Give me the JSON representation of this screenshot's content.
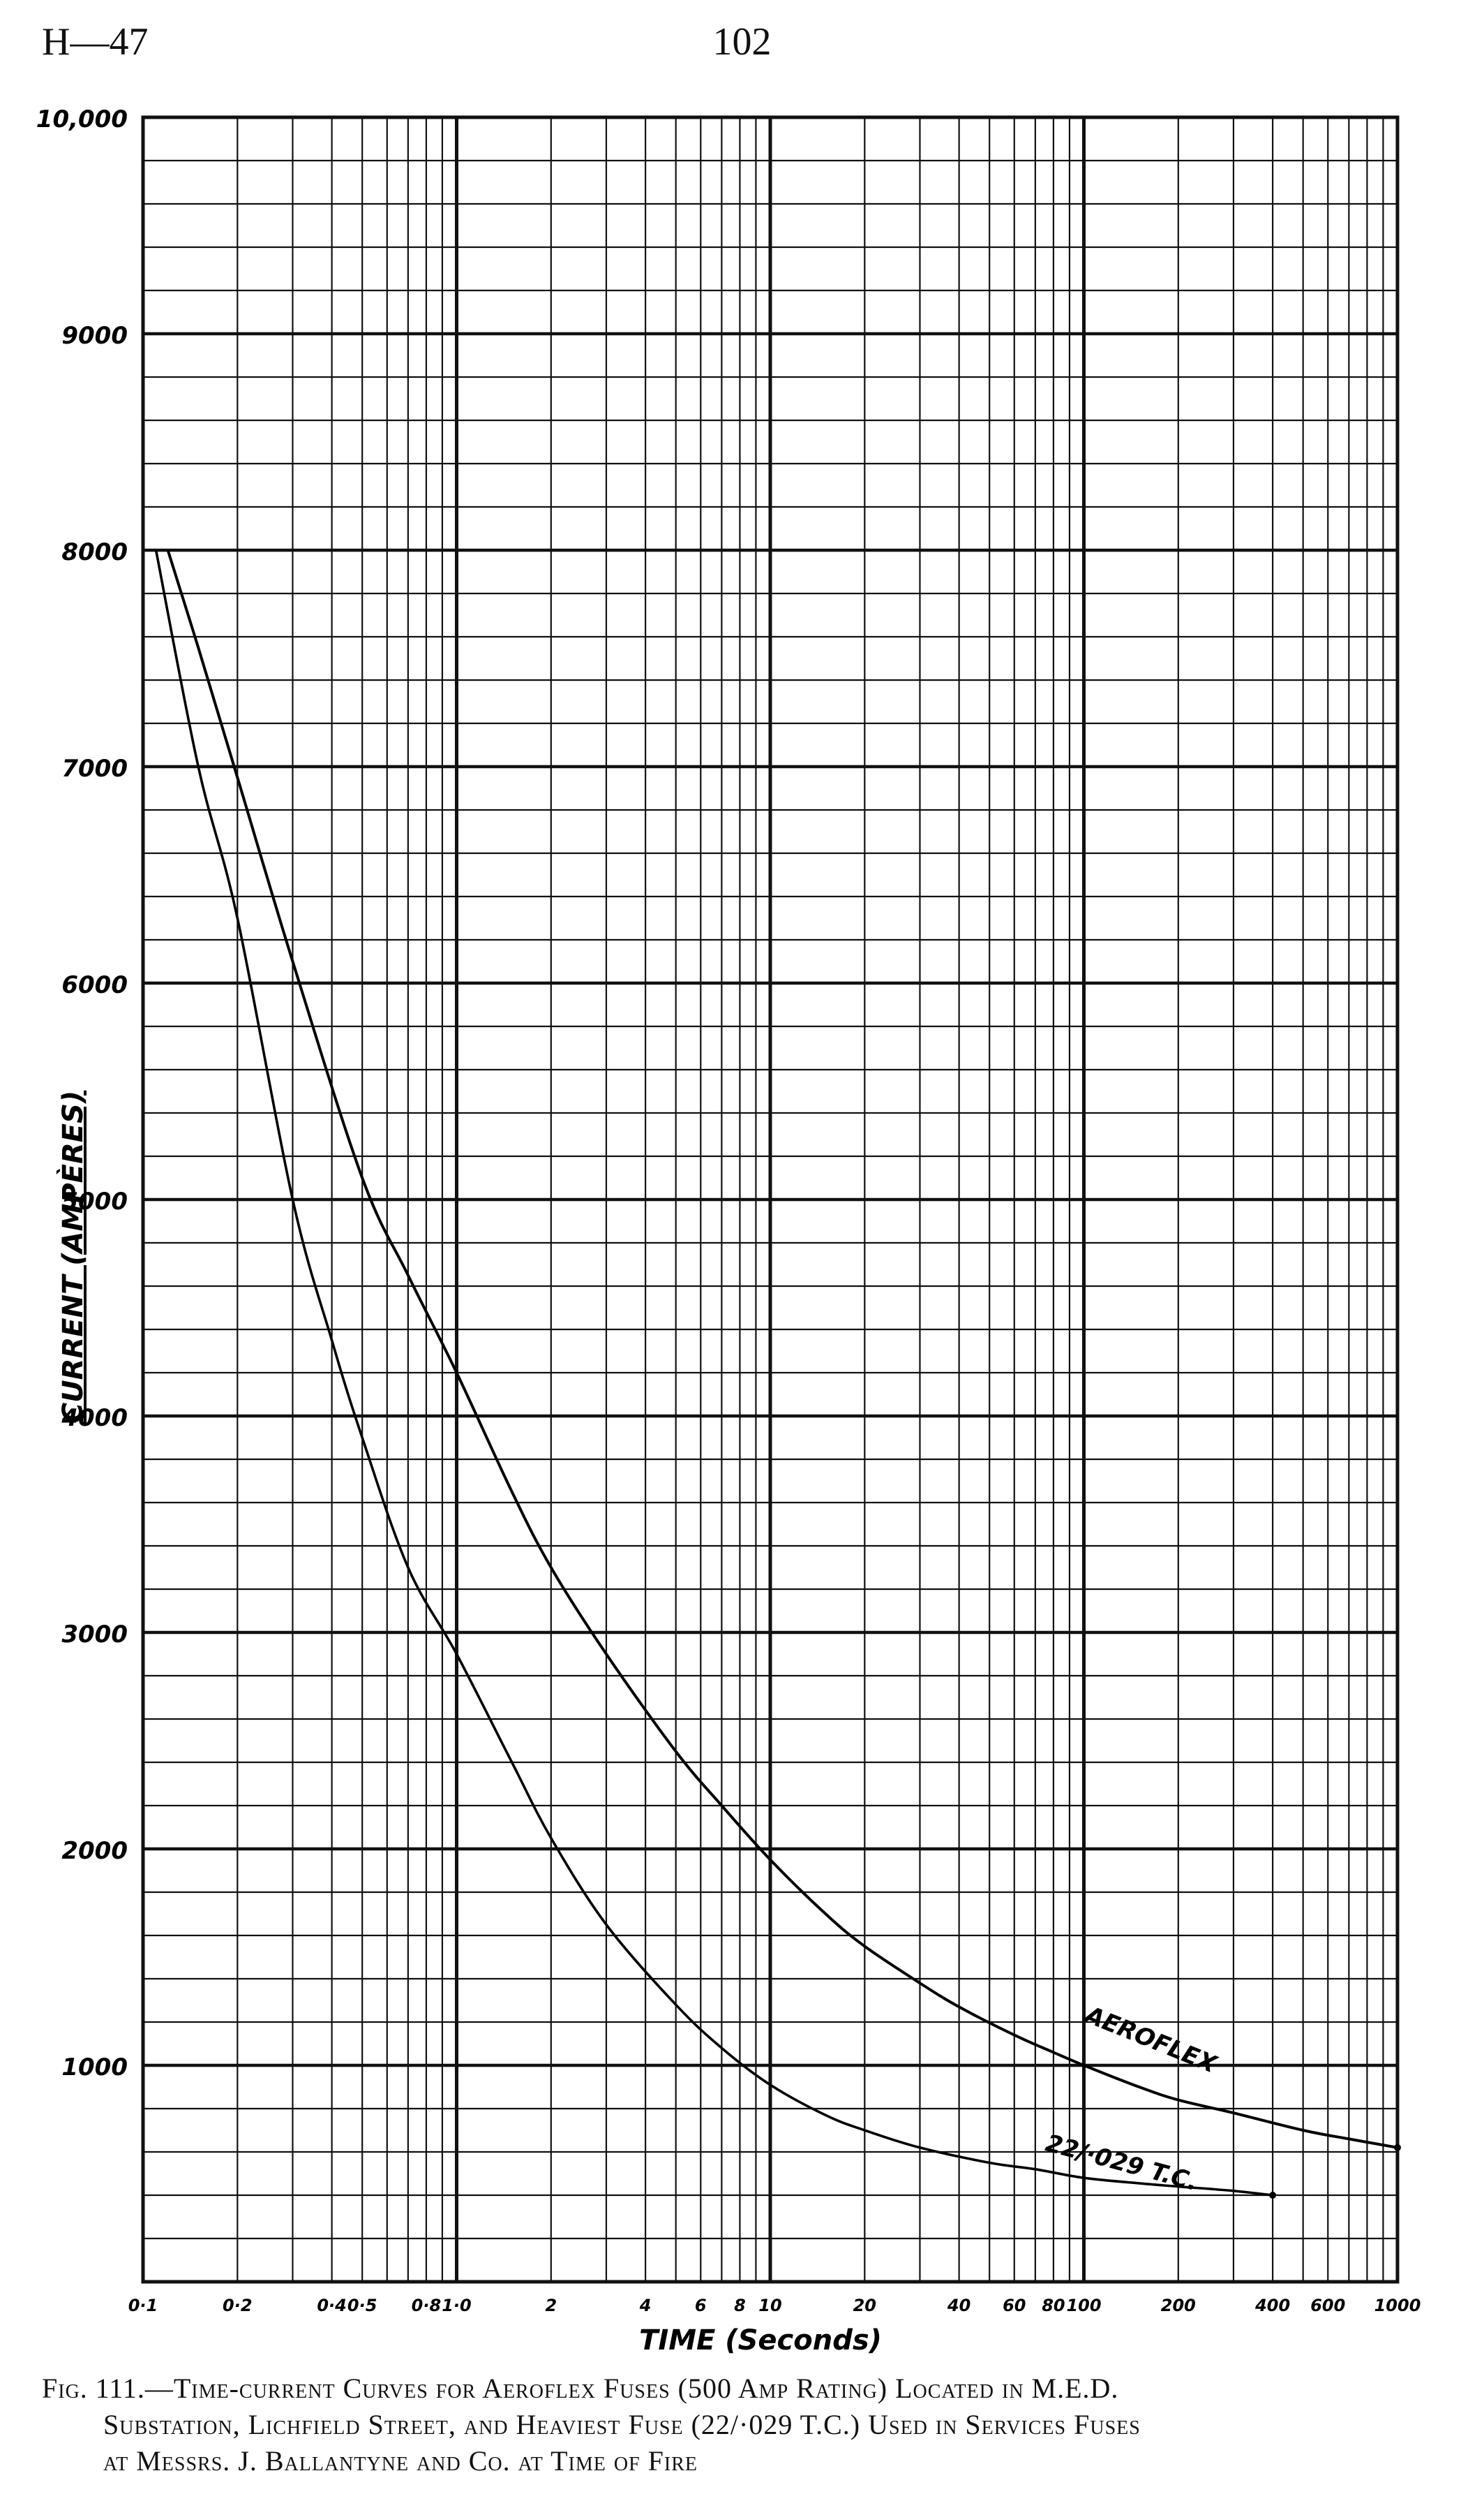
{
  "header": {
    "left": "H—47",
    "center": "102"
  },
  "chart_data": {
    "type": "line",
    "xlabel": "TIME (Seconds)",
    "ylabel": "CURRENT (AMPÈRES)",
    "xscale": "log",
    "xlim": [
      0.1,
      1000
    ],
    "ylim": [
      0,
      10000
    ],
    "grid": true,
    "x_tick_labels": [
      "0·1",
      "0·2",
      "0·4",
      "0·5",
      "0·8",
      "1·0",
      "2",
      "4",
      "6",
      "8",
      "10",
      "20",
      "40",
      "60",
      "80",
      "100",
      "200",
      "400",
      "600",
      "1000"
    ],
    "x_tick_values": [
      0.1,
      0.2,
      0.4,
      0.5,
      0.8,
      1.0,
      2,
      4,
      6,
      8,
      10,
      20,
      40,
      60,
      80,
      100,
      200,
      400,
      600,
      1000
    ],
    "y_tick_labels": [
      "1000",
      "2000",
      "3000",
      "4000",
      "5000",
      "6000",
      "7000",
      "8000",
      "9000",
      "10,000"
    ],
    "y_tick_values": [
      1000,
      2000,
      3000,
      4000,
      5000,
      6000,
      7000,
      8000,
      9000,
      10000
    ],
    "series": [
      {
        "name": "AEROFLEX",
        "x": [
          0.12,
          0.15,
          0.2,
          0.3,
          0.5,
          0.7,
          1.0,
          1.5,
          2,
          3,
          5,
          7,
          10,
          15,
          20,
          30,
          40,
          60,
          80,
          100,
          150,
          200,
          300,
          500,
          700,
          1000
        ],
        "y": [
          8000,
          7550,
          6950,
          6100,
          5100,
          4650,
          4200,
          3650,
          3300,
          2900,
          2450,
          2200,
          1950,
          1700,
          1550,
          1380,
          1270,
          1140,
          1060,
          1000,
          900,
          840,
          780,
          700,
          660,
          620
        ]
      },
      {
        "name": "22/·029 T.C.",
        "x": [
          0.11,
          0.15,
          0.2,
          0.3,
          0.4,
          0.5,
          0.7,
          1.0,
          1.5,
          2,
          3,
          5,
          7,
          10,
          15,
          20,
          30,
          50,
          70,
          100,
          150,
          200,
          300,
          400
        ],
        "y": [
          8000,
          7000,
          6300,
          5000,
          4350,
          3900,
          3300,
          2900,
          2400,
          2050,
          1650,
          1280,
          1080,
          910,
          770,
          700,
          620,
          550,
          520,
          480,
          455,
          440,
          420,
          400
        ]
      }
    ]
  },
  "caption": {
    "line1": "Fig. 111.—Time-current Curves for Aeroflex Fuses (500 Amp Rating) Located in M.E.D.",
    "line2": "Substation, Lichfield Street, and Heaviest Fuse (22/·029 T.C.) Used in Services Fuses",
    "line3": "at Messrs. J. Ballantyne and Co. at Time of Fire"
  }
}
